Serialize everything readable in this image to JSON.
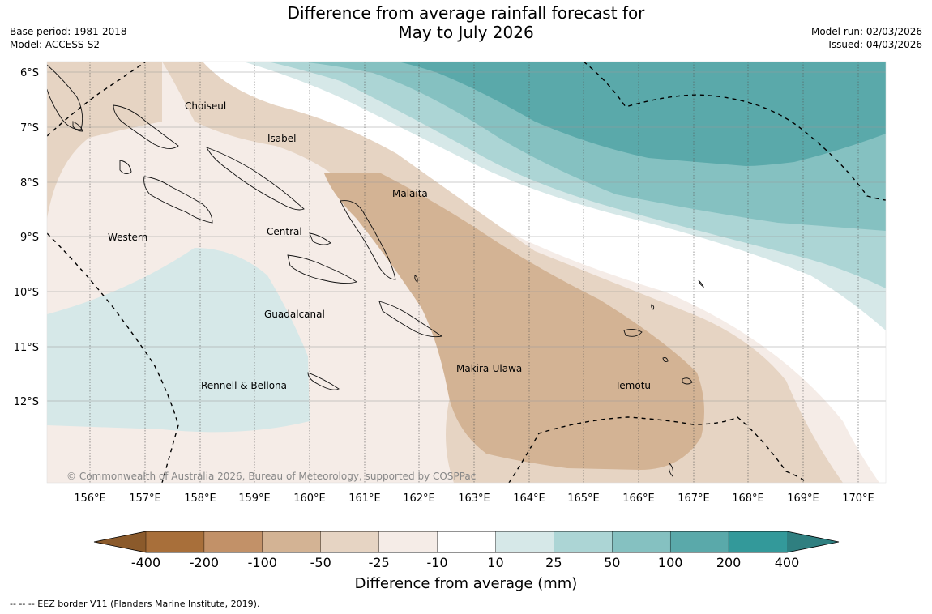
{
  "header": {
    "title_line1": "Difference from average rainfall forecast for",
    "title_line2": "May to July 2026",
    "base_period": "Base period: 1981-2018",
    "model": "Model: ACCESS-S2",
    "model_run": "Model run: 02/03/2026",
    "issued": "Issued: 04/03/2026"
  },
  "map": {
    "lat_labels": [
      "6°S",
      "7°S",
      "8°S",
      "9°S",
      "10°S",
      "11°S",
      "12°S"
    ],
    "lon_labels": [
      "156°E",
      "157°E",
      "158°E",
      "159°E",
      "160°E",
      "161°E",
      "162°E",
      "163°E",
      "164°E",
      "165°E",
      "166°E",
      "167°E",
      "168°E",
      "169°E",
      "170°E"
    ],
    "places": [
      "Choiseul",
      "Isabel",
      "Malaita",
      "Central",
      "Western",
      "Guadalcanal",
      "Makira-Ulawa",
      "Temotu",
      "Rennell & Bellona"
    ],
    "copyright": "© Commonwealth of Australia 2026, Bureau of Meteorology, supported by COSPPac"
  },
  "colorbar": {
    "ticks": [
      "-400",
      "-200",
      "-100",
      "-50",
      "-25",
      "-10",
      "10",
      "25",
      "50",
      "100",
      "200",
      "400"
    ],
    "colors": [
      "#a86f3a",
      "#c29168",
      "#d3b394",
      "#e6d4c3",
      "#f5ece7",
      "#ffffff",
      "#d6e8e8",
      "#acd5d5",
      "#85c1c1",
      "#5aa9aa",
      "#33999a"
    ],
    "under_color": "#8b5a2b",
    "over_color": "#2f7f80",
    "label": "Difference from average (mm)"
  },
  "legend": {
    "eez_note": "--  --  -- EEZ border V11 (Flanders Marine Institute, 2019)."
  }
}
